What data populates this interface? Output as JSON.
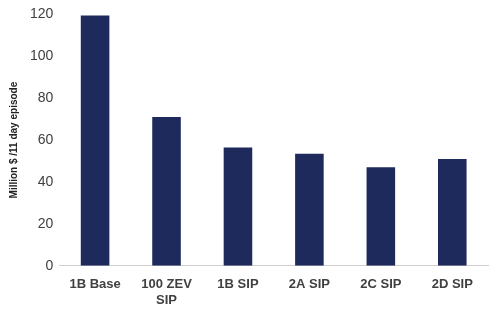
{
  "chart_data": {
    "type": "bar",
    "y_label": "Million $ /11 day episode",
    "categories": [
      "1B Base",
      "100 ZEV SIP",
      "1B SIP",
      "2A SIP",
      "2C SIP",
      "2D SIP"
    ],
    "values": [
      119.5,
      71,
      56.5,
      53.5,
      47,
      51
    ],
    "color": "#1f2a5c",
    "ylim": [
      0,
      120
    ],
    "yticks": [
      0,
      20,
      40,
      60,
      80,
      100,
      120
    ],
    "grid": false
  }
}
